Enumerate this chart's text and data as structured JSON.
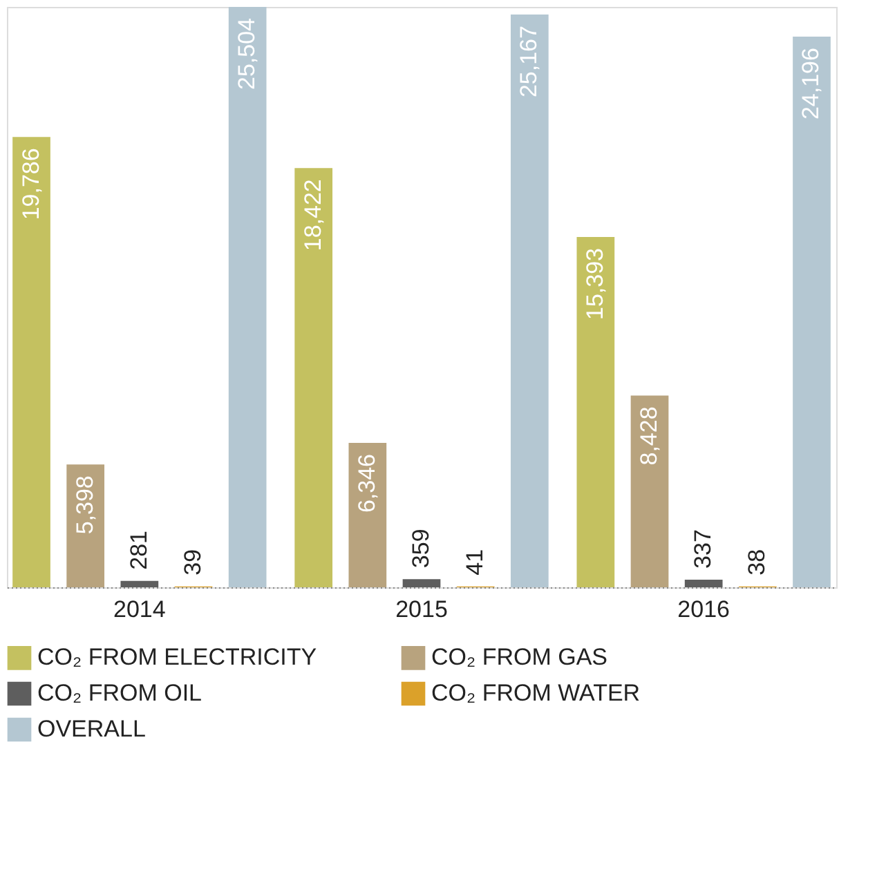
{
  "chart_data": {
    "type": "bar",
    "categories": [
      "2014",
      "2015",
      "2016"
    ],
    "series": [
      {
        "name": "CO₂ FROM ELECTRICITY",
        "color": "#c4c160",
        "values": [
          19786,
          18422,
          15393
        ],
        "value_labels": [
          "19,786",
          "18,422",
          "15,393"
        ]
      },
      {
        "name": "CO₂ FROM GAS",
        "color": "#b8a37e",
        "values": [
          5398,
          6346,
          8428
        ],
        "value_labels": [
          "5,398",
          "6,346",
          "8,428"
        ]
      },
      {
        "name": "CO₂ FROM OIL",
        "color": "#5e5e5e",
        "values": [
          281,
          359,
          337
        ],
        "value_labels": [
          "281",
          "359",
          "337"
        ]
      },
      {
        "name": "CO₂ FROM WATER",
        "color": "#dba12a",
        "values": [
          39,
          41,
          38
        ],
        "value_labels": [
          "39",
          "41",
          "38"
        ]
      },
      {
        "name": "OVERALL",
        "color": "#b4c7d2",
        "values": [
          25504,
          25167,
          24196
        ],
        "value_labels": [
          "25,504",
          "25,167",
          "24,196"
        ]
      }
    ],
    "legend": "bottom",
    "grid": false,
    "tick_labels": "x"
  }
}
